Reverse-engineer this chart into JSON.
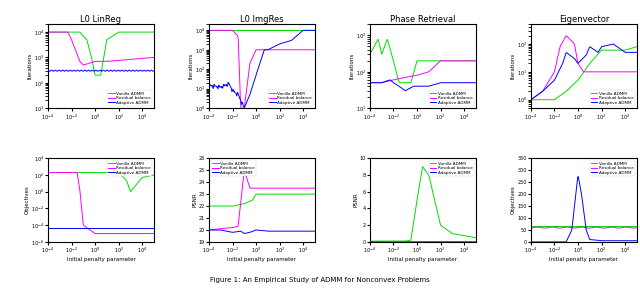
{
  "titles": [
    "L0 LinReg",
    "L0 ImgRes",
    "Phase Retrieval",
    "Eigenvector"
  ],
  "xlabel": "Initial penalty parameter",
  "ylabels_top": [
    "Iterations",
    "Iterations",
    "Iterations",
    "Iterations"
  ],
  "ylabels_bottom": [
    "Objectives",
    "PSNR",
    "PSNR",
    "Objectives"
  ],
  "legend_labels": [
    "Vanilla ADMM",
    "Residual balance",
    "Adaptive ADMM"
  ],
  "colors": [
    "#00dd00",
    "#ff00ff",
    "#0000ff"
  ],
  "background": "#ffffff",
  "caption": "Figure 1: An Empirical Study of ADMM for Nonconvex Problems"
}
